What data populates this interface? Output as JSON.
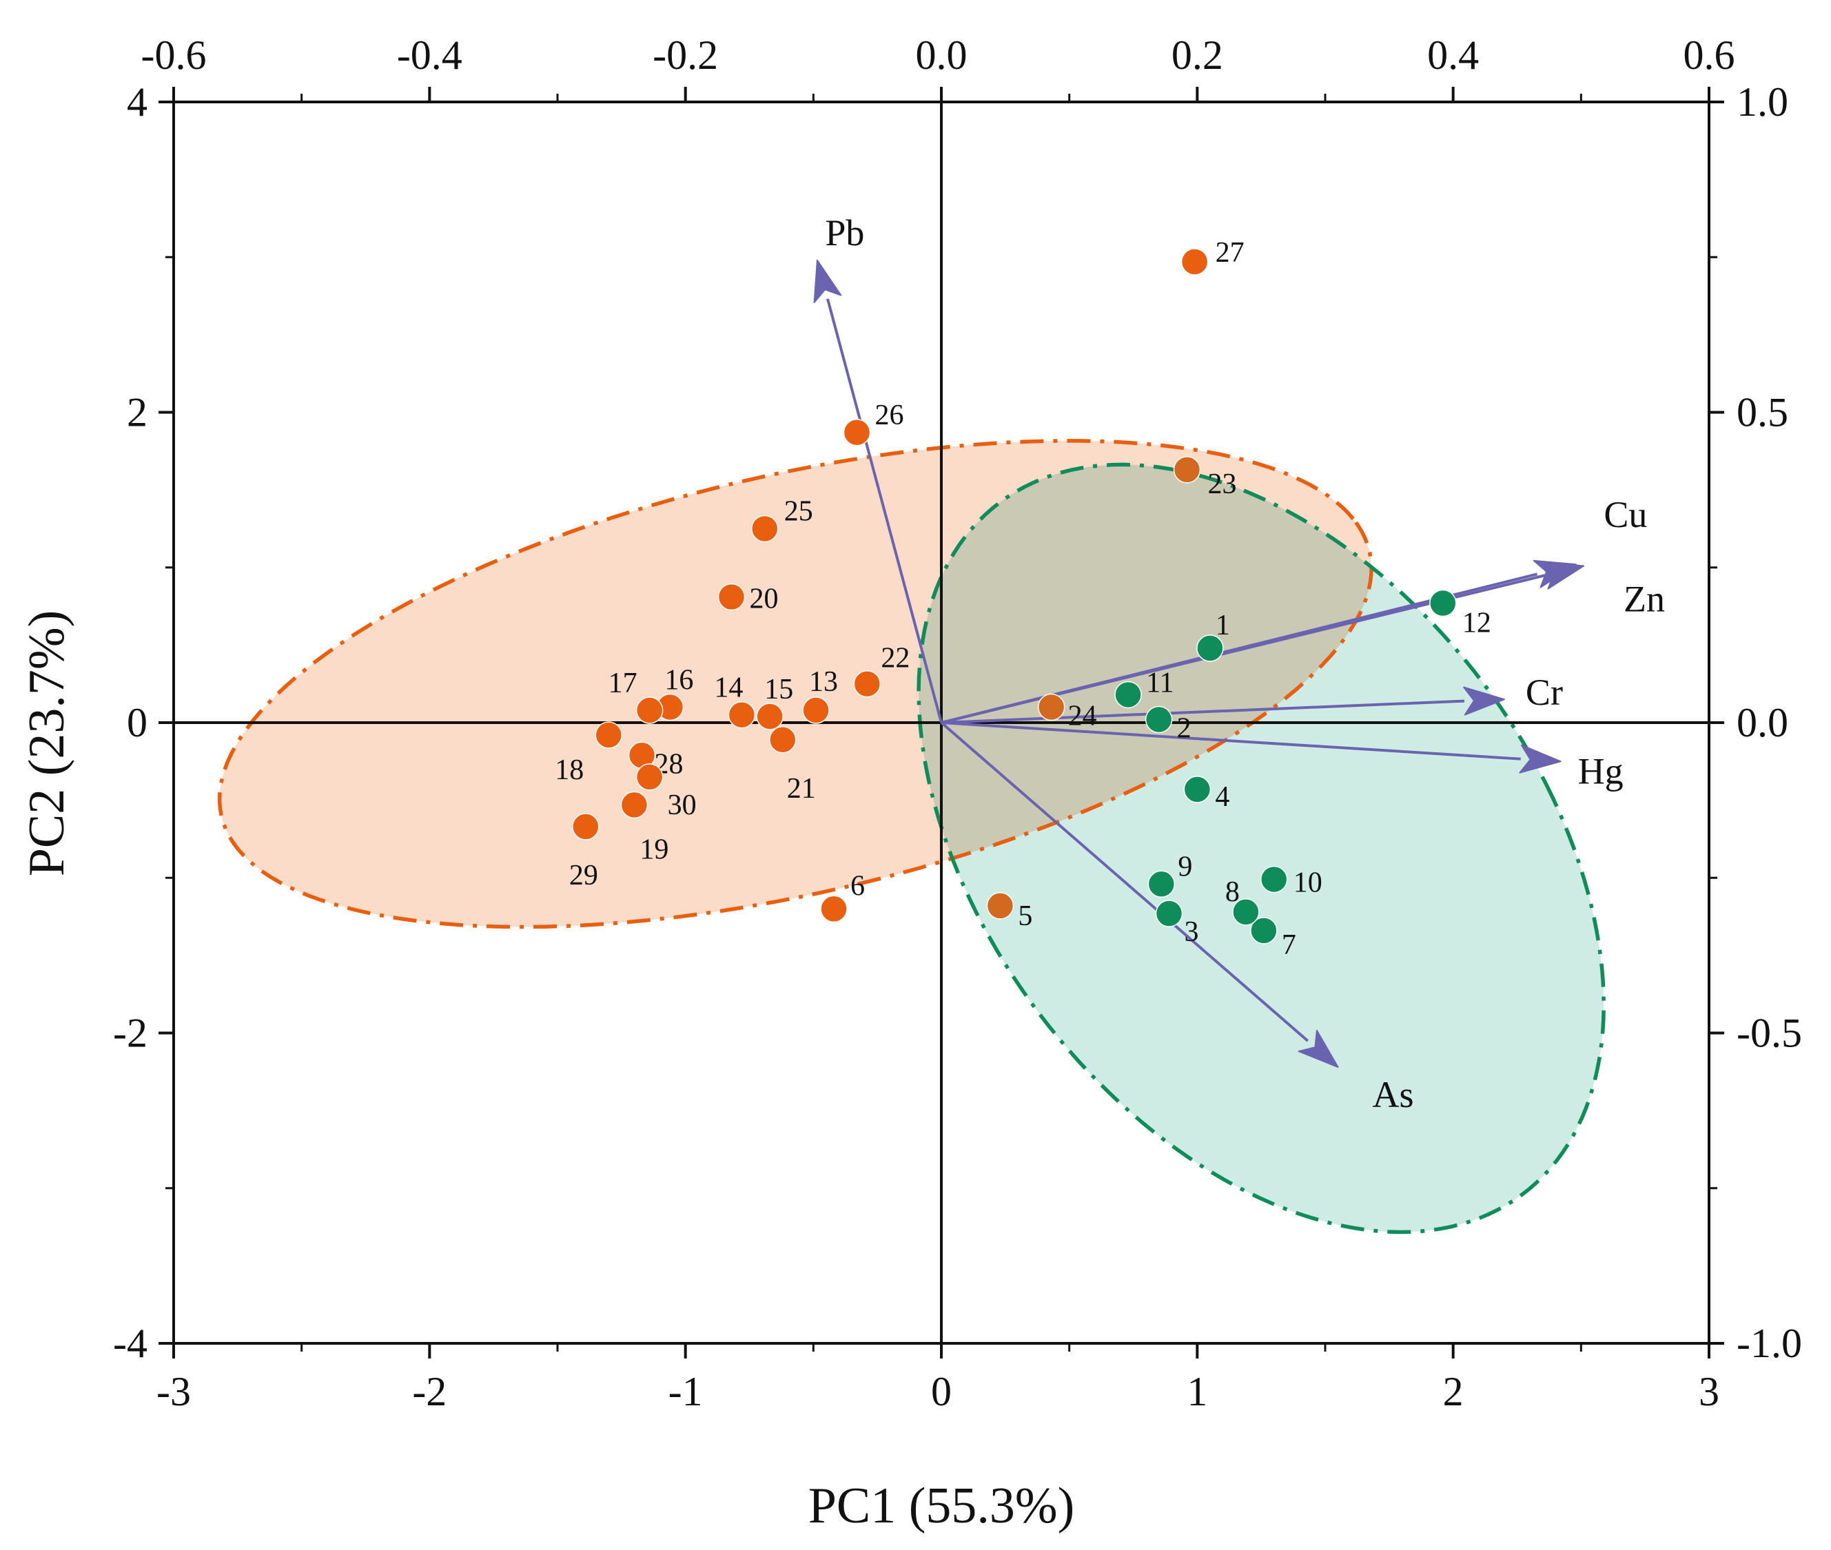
{
  "chart_data": {
    "type": "scatter",
    "subtype": "pca-biplot",
    "xlabel": "PC1 (55.3%)",
    "ylabel": "PC2 (23.7%)",
    "xlim": [
      -3,
      3
    ],
    "ylim": [
      -4,
      4
    ],
    "xticks": [
      -3,
      -2,
      -1,
      0,
      1,
      2,
      3
    ],
    "yticks": [
      -4,
      -2,
      0,
      2,
      4
    ],
    "top_axis": {
      "lim": [
        -0.6,
        0.6
      ],
      "ticks": [
        -0.6,
        -0.4,
        -0.2,
        0.0,
        0.2,
        0.4,
        0.6
      ],
      "labels": [
        "-0.6",
        "-0.4",
        "-0.2",
        "0.0",
        "0.2",
        "0.4",
        "0.6"
      ]
    },
    "right_axis": {
      "lim": [
        -1.0,
        1.0
      ],
      "ticks": [
        -1.0,
        -0.5,
        0.0,
        0.5,
        1.0
      ],
      "labels": [
        "-1.0",
        "-0.5",
        "0.0",
        "0.5",
        "1.0"
      ]
    },
    "x_tick_labels": [
      "-3",
      "-2",
      "-1",
      "0",
      "1",
      "2",
      "3"
    ],
    "y_tick_labels": [
      "-4",
      "-2",
      "0",
      "2",
      "4"
    ],
    "grid": false,
    "colors": {
      "group_orange": "#e8600f",
      "group_green": "#0e8c5a",
      "overlap_point": "#d2691e",
      "ellipse_orange_fill": "#f9d6c0",
      "ellipse_green_fill": "#c5e8df",
      "vector": "#6a63b0"
    },
    "ellipses": [
      {
        "name": "orange",
        "cx": -0.57,
        "cy": 0.25,
        "rx": 2.425,
        "ry": 1.28,
        "angle_deg": 26,
        "color": "#e8600f",
        "fill": "#f9d6c0"
      },
      {
        "name": "green",
        "cx": 1.25,
        "cy": -0.81,
        "rx": 1.185,
        "ry": 2.55,
        "angle_deg": 16,
        "color": "#0e8c5a",
        "fill": "#c5e8df"
      }
    ],
    "points": [
      {
        "label": "1",
        "x": 1.05,
        "y": 0.48,
        "group": "green"
      },
      {
        "label": "2",
        "x": 0.85,
        "y": 0.02,
        "group": "green"
      },
      {
        "label": "3",
        "x": 0.89,
        "y": -1.23,
        "group": "green"
      },
      {
        "label": "4",
        "x": 1.0,
        "y": -0.43,
        "group": "green"
      },
      {
        "label": "5",
        "x": 0.23,
        "y": -1.18,
        "group": "overlap"
      },
      {
        "label": "6",
        "x": -0.42,
        "y": -1.2,
        "group": "orange"
      },
      {
        "label": "7",
        "x": 1.26,
        "y": -1.34,
        "group": "green"
      },
      {
        "label": "8",
        "x": 1.19,
        "y": -1.22,
        "group": "green"
      },
      {
        "label": "9",
        "x": 0.86,
        "y": -1.04,
        "group": "green"
      },
      {
        "label": "10",
        "x": 1.3,
        "y": -1.01,
        "group": "green"
      },
      {
        "label": "11",
        "x": 0.73,
        "y": 0.18,
        "group": "green"
      },
      {
        "label": "12",
        "x": 1.96,
        "y": 0.77,
        "group": "green"
      },
      {
        "label": "13",
        "x": -0.49,
        "y": 0.08,
        "group": "orange"
      },
      {
        "label": "14",
        "x": -0.78,
        "y": 0.05,
        "group": "orange"
      },
      {
        "label": "15",
        "x": -0.67,
        "y": 0.04,
        "group": "orange"
      },
      {
        "label": "16",
        "x": -1.06,
        "y": 0.1,
        "group": "orange"
      },
      {
        "label": "17",
        "x": -1.14,
        "y": 0.08,
        "group": "orange"
      },
      {
        "label": "18",
        "x": -1.3,
        "y": -0.08,
        "group": "orange"
      },
      {
        "label": "19",
        "x": -1.2,
        "y": -0.53,
        "group": "orange"
      },
      {
        "label": "20",
        "x": -0.82,
        "y": 0.81,
        "group": "orange"
      },
      {
        "label": "21",
        "x": -0.62,
        "y": -0.11,
        "group": "orange"
      },
      {
        "label": "22",
        "x": -0.29,
        "y": 0.25,
        "group": "orange"
      },
      {
        "label": "23",
        "x": 0.96,
        "y": 1.63,
        "group": "overlap"
      },
      {
        "label": "24",
        "x": 0.43,
        "y": 0.1,
        "group": "overlap"
      },
      {
        "label": "25",
        "x": -0.69,
        "y": 1.25,
        "group": "orange"
      },
      {
        "label": "26",
        "x": -0.33,
        "y": 1.87,
        "group": "orange"
      },
      {
        "label": "27",
        "x": 0.99,
        "y": 2.97,
        "group": "orange"
      },
      {
        "label": "28",
        "x": -1.17,
        "y": -0.21,
        "group": "orange"
      },
      {
        "label": "29",
        "x": -1.39,
        "y": -0.67,
        "group": "orange"
      },
      {
        "label": "30",
        "x": -1.14,
        "y": -0.35,
        "group": "orange"
      }
    ],
    "vectors": [
      {
        "name": "Pb",
        "x": -0.485,
        "y": 2.98
      },
      {
        "name": "Cu",
        "x": 2.48,
        "y": 1.02
      },
      {
        "name": "Zn",
        "x": 2.51,
        "y": 1.01
      },
      {
        "name": "Cr",
        "x": 2.2,
        "y": 0.15
      },
      {
        "name": "Hg",
        "x": 2.42,
        "y": -0.25
      },
      {
        "name": "As",
        "x": 1.55,
        "y": -2.22
      }
    ]
  }
}
